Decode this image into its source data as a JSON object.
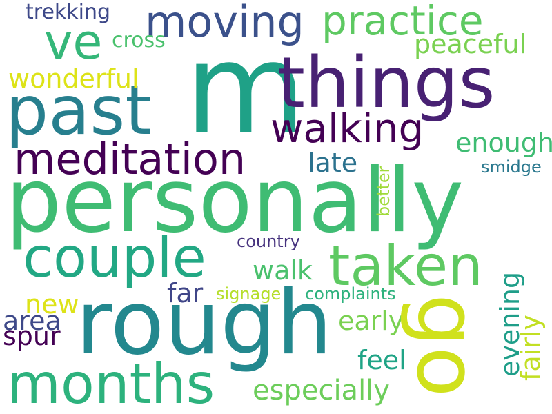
{
  "words": {
    "m": {
      "text": "m",
      "color": "#1fa187"
    },
    "personally": {
      "text": "personally",
      "color": "#3fbc73"
    },
    "rough": {
      "text": "rough",
      "color": "#23888e"
    },
    "things": {
      "text": "things",
      "color": "#482173"
    },
    "past": {
      "text": "past",
      "color": "#277f8e"
    },
    "couple": {
      "text": "couple",
      "color": "#22a884"
    },
    "taken": {
      "text": "taken",
      "color": "#5ec962"
    },
    "months": {
      "text": "months",
      "color": "#2db27d"
    },
    "meditation": {
      "text": "meditation",
      "color": "#440154"
    },
    "moving": {
      "text": "moving",
      "color": "#3b518b"
    },
    "walking": {
      "text": "walking",
      "color": "#440154"
    },
    "ve": {
      "text": "ve",
      "color": "#35b779"
    },
    "practice": {
      "text": "practice",
      "color": "#5ec962"
    },
    "go": {
      "text": "go",
      "color": "#d0e11c"
    },
    "especially": {
      "text": "especially",
      "color": "#6ccd5a"
    },
    "trekking": {
      "text": "trekking",
      "color": "#3e4989"
    },
    "cross": {
      "text": "cross",
      "color": "#4ac16d"
    },
    "peaceful": {
      "text": "peaceful",
      "color": "#7ad151"
    },
    "wonderful": {
      "text": "wonderful",
      "color": "#dde318"
    },
    "enough": {
      "text": "enough",
      "color": "#3fbc73"
    },
    "late": {
      "text": "late",
      "color": "#2c728e"
    },
    "smidge": {
      "text": "smidge",
      "color": "#2a788e"
    },
    "better": {
      "text": "better",
      "color": "#a0da39"
    },
    "country": {
      "text": "country",
      "color": "#46327e"
    },
    "walk": {
      "text": "walk",
      "color": "#4ac16d"
    },
    "far": {
      "text": "far",
      "color": "#404688"
    },
    "signage": {
      "text": "signage",
      "color": "#b5de2b"
    },
    "complaints": {
      "text": "complaints",
      "color": "#2db27d"
    },
    "new": {
      "text": "new",
      "color": "#dde318"
    },
    "area": {
      "text": "area",
      "color": "#3e4989"
    },
    "spur": {
      "text": "spur",
      "color": "#440154"
    },
    "early": {
      "text": "early",
      "color": "#7ad151"
    },
    "evening": {
      "text": "evening",
      "color": "#1f9e89"
    },
    "fairly": {
      "text": "fairly",
      "color": "#c2df23"
    },
    "feel": {
      "text": "feel",
      "color": "#20a486"
    }
  }
}
